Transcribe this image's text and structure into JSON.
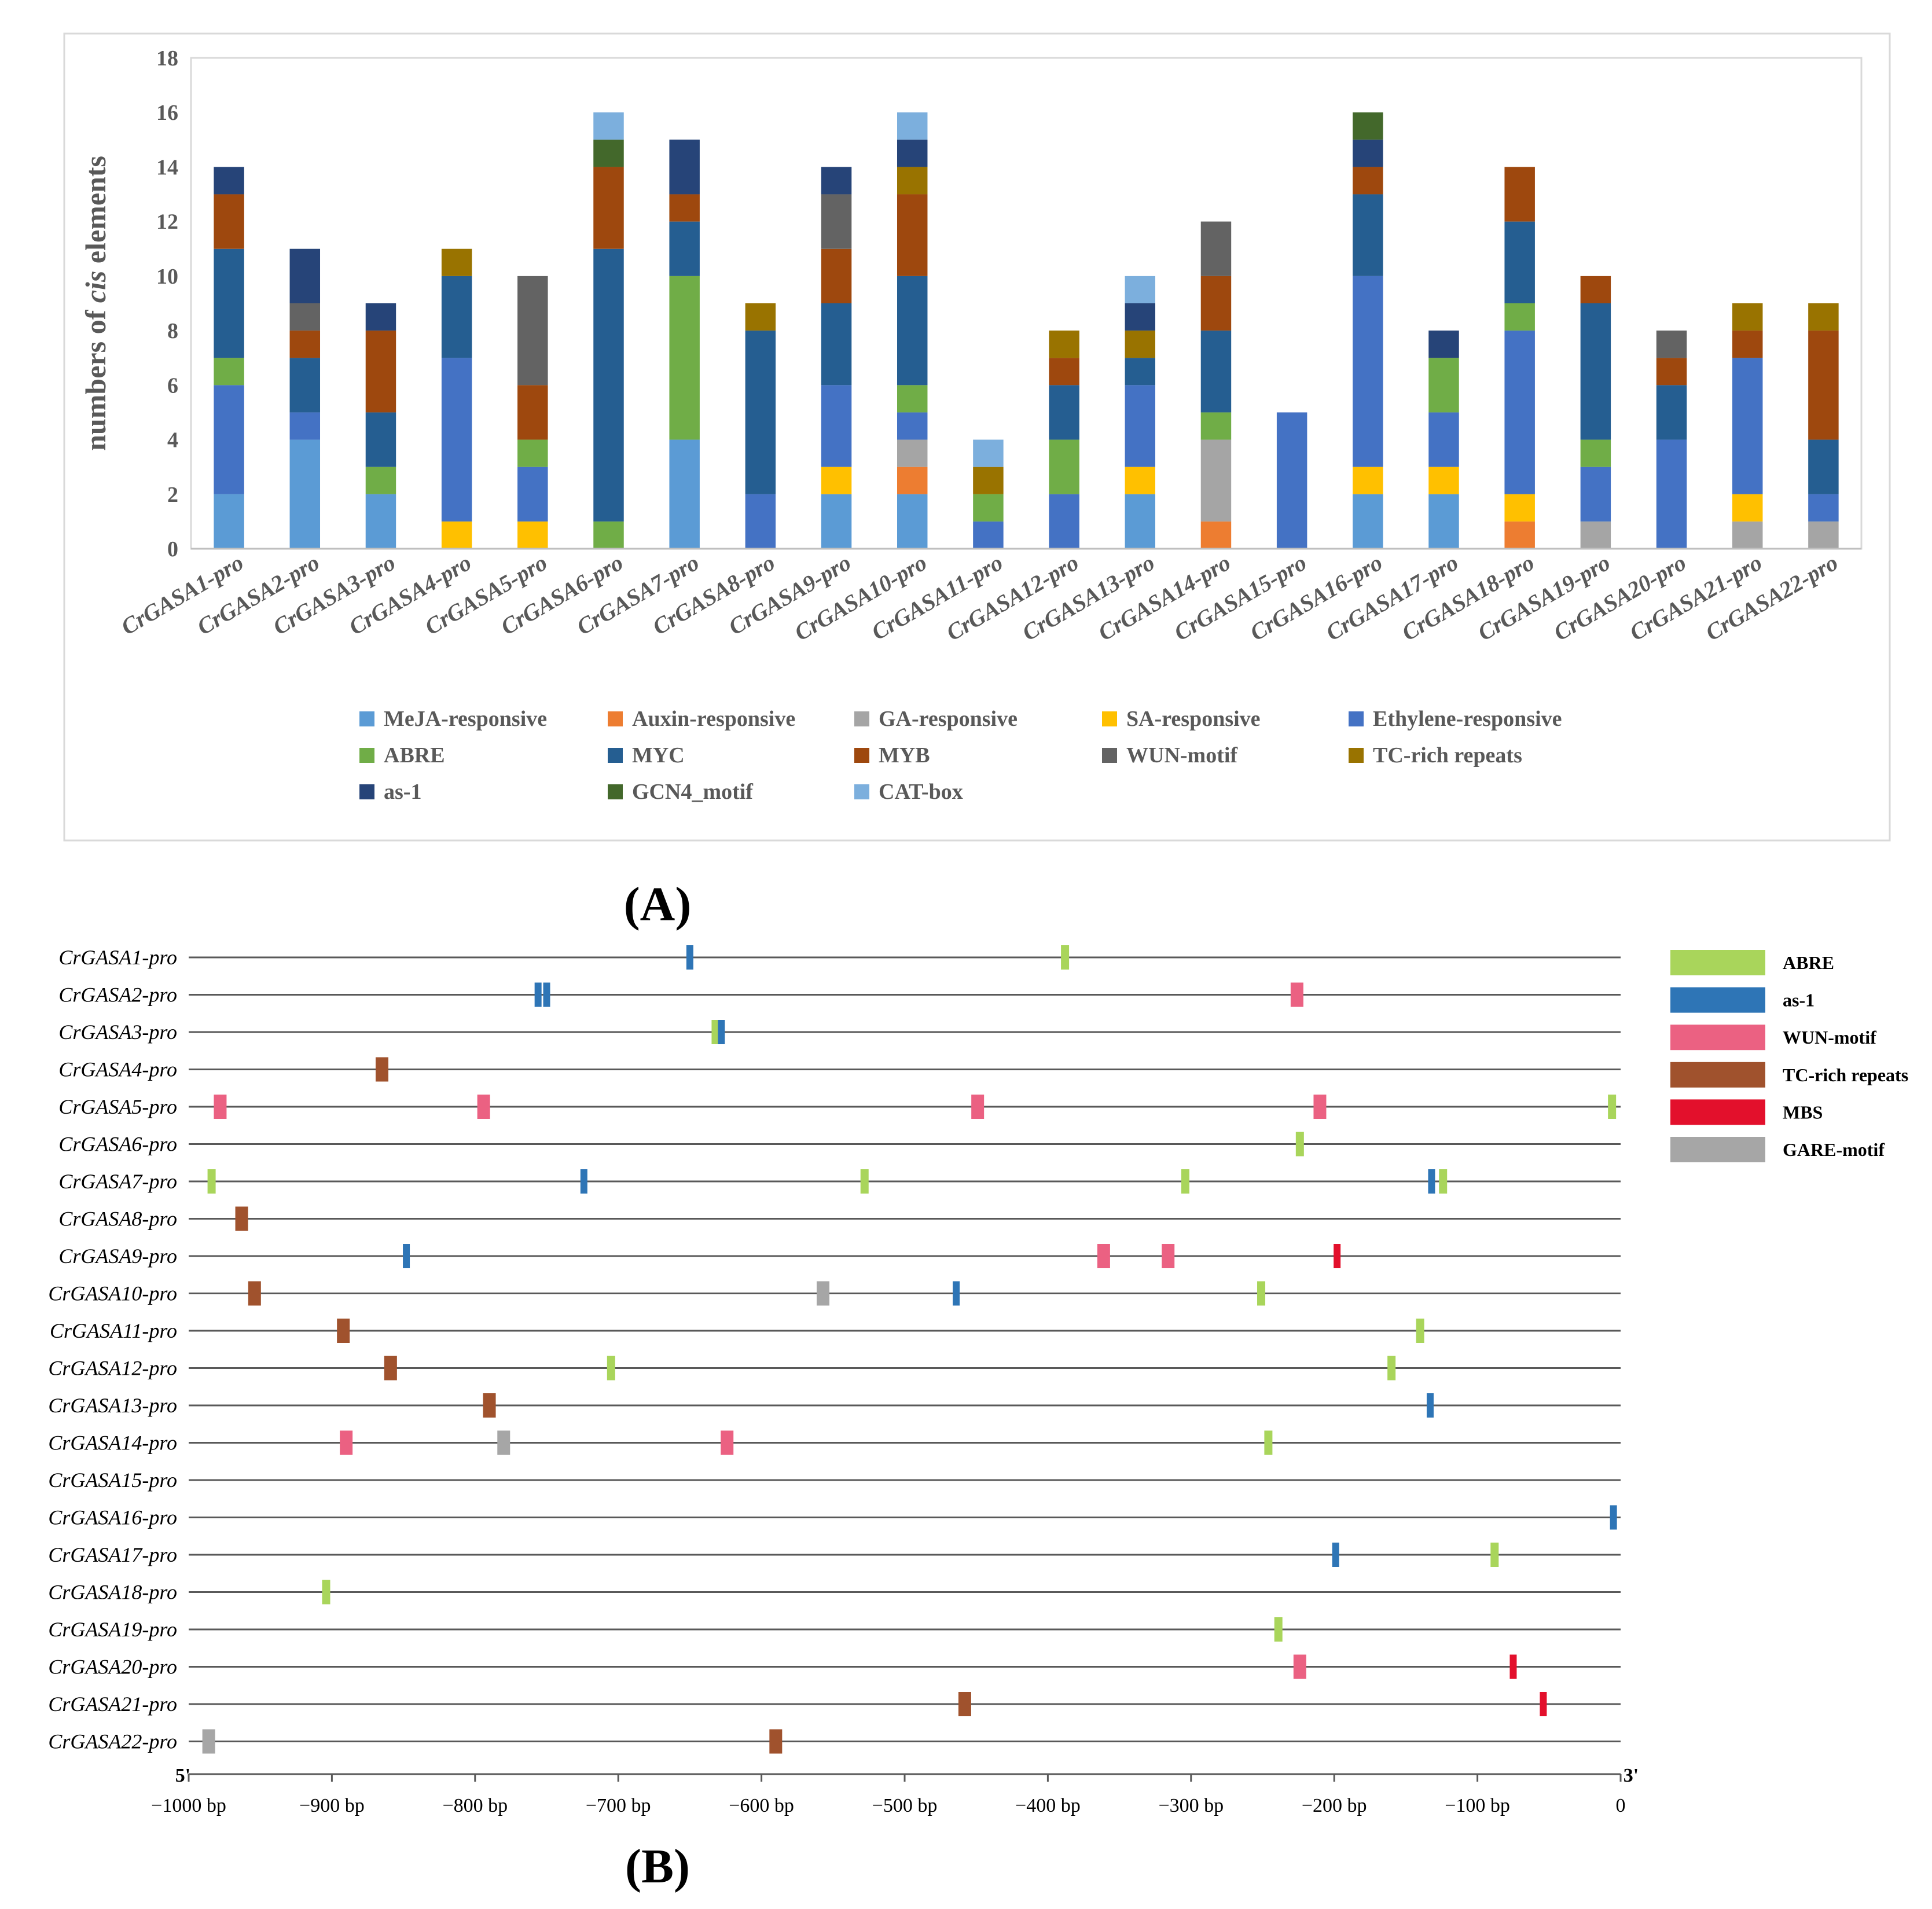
{
  "panel_labels": {
    "a": "(A)",
    "b": "(B)"
  },
  "chart_data": [
    {
      "type": "bar",
      "stacked": true,
      "ylabel_prefix": "numbers of ",
      "ylabel_italic": "cis",
      "ylabel_suffix": " elements",
      "ylim": [
        0,
        18
      ],
      "yticks": [
        0,
        2,
        4,
        6,
        8,
        10,
        12,
        14,
        16,
        18
      ],
      "grid": false,
      "legend_position": "bottom",
      "categories": [
        "CrGASA1-pro",
        "CrGASA2-pro",
        "CrGASA3-pro",
        "CrGASA4-pro",
        "CrGASA5-pro",
        "CrGASA6-pro",
        "CrGASA7-pro",
        "CrGASA8-pro",
        "CrGASA9-pro",
        "CrGASA10-pro",
        "CrGASA11-pro",
        "CrGASA12-pro",
        "CrGASA13-pro",
        "CrGASA14-pro",
        "CrGASA15-pro",
        "CrGASA16-pro",
        "CrGASA17-pro",
        "CrGASA18-pro",
        "CrGASA19-pro",
        "CrGASA20-pro",
        "CrGASA21-pro",
        "CrGASA22-pro"
      ],
      "series": [
        {
          "name": "MeJA-responsive",
          "color": "#5b9bd5",
          "values": [
            2,
            4,
            2,
            0,
            0,
            0,
            4,
            0,
            2,
            2,
            0,
            0,
            2,
            0,
            0,
            2,
            2,
            0,
            0,
            0,
            0,
            0
          ]
        },
        {
          "name": "Auxin-responsive",
          "color": "#ed7d31",
          "values": [
            0,
            0,
            0,
            0,
            0,
            0,
            0,
            0,
            0,
            1,
            0,
            0,
            0,
            1,
            0,
            0,
            0,
            1,
            0,
            0,
            0,
            0
          ]
        },
        {
          "name": "GA-responsive",
          "color": "#a5a5a5",
          "values": [
            0,
            0,
            0,
            0,
            0,
            0,
            0,
            0,
            0,
            1,
            0,
            0,
            0,
            3,
            0,
            0,
            0,
            0,
            1,
            0,
            1,
            1
          ]
        },
        {
          "name": "SA-responsive",
          "color": "#ffc000",
          "values": [
            0,
            0,
            0,
            1,
            1,
            0,
            0,
            0,
            1,
            0,
            0,
            0,
            1,
            0,
            0,
            1,
            1,
            1,
            0,
            0,
            1,
            0
          ]
        },
        {
          "name": "Ethylene-responsive",
          "color": "#4472c4",
          "values": [
            4,
            1,
            0,
            6,
            2,
            0,
            0,
            2,
            3,
            1,
            1,
            2,
            3,
            0,
            5,
            7,
            2,
            6,
            2,
            4,
            5,
            1
          ]
        },
        {
          "name": "ABRE",
          "color": "#70ad47",
          "values": [
            1,
            0,
            1,
            0,
            1,
            1,
            6,
            0,
            0,
            1,
            1,
            2,
            0,
            1,
            0,
            0,
            2,
            1,
            1,
            0,
            0,
            0
          ]
        },
        {
          "name": "MYC",
          "color": "#255e91",
          "values": [
            4,
            2,
            2,
            3,
            0,
            10,
            2,
            6,
            3,
            4,
            0,
            2,
            1,
            3,
            0,
            3,
            0,
            3,
            5,
            2,
            0,
            2
          ]
        },
        {
          "name": "MYB",
          "color": "#9e480e",
          "values": [
            2,
            1,
            3,
            0,
            2,
            3,
            1,
            0,
            2,
            3,
            0,
            1,
            0,
            2,
            0,
            1,
            0,
            2,
            1,
            1,
            1,
            4
          ]
        },
        {
          "name": "WUN-motif",
          "color": "#636363",
          "values": [
            0,
            1,
            0,
            0,
            4,
            0,
            0,
            0,
            2,
            0,
            0,
            0,
            0,
            2,
            0,
            0,
            0,
            0,
            0,
            1,
            0,
            0
          ]
        },
        {
          "name": "TC-rich repeats",
          "color": "#997300",
          "values": [
            0,
            0,
            0,
            1,
            0,
            0,
            0,
            1,
            0,
            1,
            1,
            1,
            1,
            0,
            0,
            0,
            0,
            0,
            0,
            0,
            1,
            1
          ]
        },
        {
          "name": "as-1",
          "color": "#264478",
          "values": [
            1,
            2,
            1,
            0,
            0,
            0,
            2,
            0,
            1,
            1,
            0,
            0,
            1,
            0,
            0,
            1,
            1,
            0,
            0,
            0,
            0,
            0
          ]
        },
        {
          "name": "GCN4_motif",
          "color": "#43682b",
          "values": [
            0,
            0,
            0,
            0,
            0,
            1,
            0,
            0,
            0,
            0,
            0,
            0,
            0,
            0,
            0,
            1,
            0,
            0,
            0,
            0,
            0,
            0
          ]
        },
        {
          "name": "CAT-box",
          "color": "#7cafdd",
          "values": [
            0,
            0,
            0,
            0,
            0,
            1,
            0,
            0,
            0,
            1,
            1,
            0,
            1,
            0,
            0,
            0,
            0,
            0,
            0,
            0,
            0,
            0
          ]
        }
      ]
    },
    {
      "type": "scatter",
      "subtype": "promoter-element-map",
      "xlabel": "",
      "xlim": [
        -1000,
        0
      ],
      "xtick_values": [
        -1000,
        -900,
        -800,
        -700,
        -600,
        -500,
        -400,
        -300,
        -200,
        -100,
        0
      ],
      "xtick_labels": [
        "−1000 bp",
        "−900 bp",
        "−800 bp",
        "−700 bp",
        "−600 bp",
        "−500 bp",
        "−400 bp",
        "−300 bp",
        "−200 bp",
        "−100 bp",
        "0"
      ],
      "end_labels": {
        "left": "5'",
        "right": "3'"
      },
      "promoters": [
        "CrGASA1-pro",
        "CrGASA2-pro",
        "CrGASA3-pro",
        "CrGASA4-pro",
        "CrGASA5-pro",
        "CrGASA6-pro",
        "CrGASA7-pro",
        "CrGASA8-pro",
        "CrGASA9-pro",
        "CrGASA10-pro",
        "CrGASA11-pro",
        "CrGASA12-pro",
        "CrGASA13-pro",
        "CrGASA14-pro",
        "CrGASA15-pro",
        "CrGASA16-pro",
        "CrGASA17-pro",
        "CrGASA18-pro",
        "CrGASA19-pro",
        "CrGASA20-pro",
        "CrGASA21-pro",
        "CrGASA22-pro"
      ],
      "legend": [
        {
          "name": "ABRE",
          "color": "#a9d55b"
        },
        {
          "name": "as-1",
          "color": "#2e75b6"
        },
        {
          "name": "WUN-motif",
          "color": "#eb6182"
        },
        {
          "name": "TC-rich repeats",
          "color": "#a0522d"
        },
        {
          "name": "MBS",
          "color": "#e3102c"
        },
        {
          "name": "GARE-motif",
          "color": "#a6a6a6"
        }
      ],
      "elements": [
        {
          "promoter": 0,
          "type": "as-1",
          "pos": -650
        },
        {
          "promoter": 0,
          "type": "ABRE",
          "pos": -388
        },
        {
          "promoter": 1,
          "type": "as-1",
          "pos": -756
        },
        {
          "promoter": 1,
          "type": "as-1",
          "pos": -750
        },
        {
          "promoter": 1,
          "type": "WUN-motif",
          "pos": -226
        },
        {
          "promoter": 2,
          "type": "ABRE",
          "pos": -632
        },
        {
          "promoter": 2,
          "type": "as-1",
          "pos": -628
        },
        {
          "promoter": 3,
          "type": "TC-rich repeats",
          "pos": -865
        },
        {
          "promoter": 4,
          "type": "WUN-motif",
          "pos": -978
        },
        {
          "promoter": 4,
          "type": "WUN-motif",
          "pos": -794
        },
        {
          "promoter": 4,
          "type": "WUN-motif",
          "pos": -449
        },
        {
          "promoter": 4,
          "type": "WUN-motif",
          "pos": -210
        },
        {
          "promoter": 4,
          "type": "ABRE",
          "pos": -6
        },
        {
          "promoter": 5,
          "type": "ABRE",
          "pos": -224
        },
        {
          "promoter": 6,
          "type": "ABRE",
          "pos": -984
        },
        {
          "promoter": 6,
          "type": "as-1",
          "pos": -724
        },
        {
          "promoter": 6,
          "type": "ABRE",
          "pos": -528
        },
        {
          "promoter": 6,
          "type": "ABRE",
          "pos": -304
        },
        {
          "promoter": 6,
          "type": "as-1",
          "pos": -132
        },
        {
          "promoter": 6,
          "type": "ABRE",
          "pos": -124
        },
        {
          "promoter": 7,
          "type": "TC-rich repeats",
          "pos": -963
        },
        {
          "promoter": 8,
          "type": "as-1",
          "pos": -848
        },
        {
          "promoter": 8,
          "type": "WUN-motif",
          "pos": -361
        },
        {
          "promoter": 8,
          "type": "WUN-motif",
          "pos": -316
        },
        {
          "promoter": 8,
          "type": "MBS",
          "pos": -198
        },
        {
          "promoter": 9,
          "type": "TC-rich repeats",
          "pos": -954
        },
        {
          "promoter": 9,
          "type": "GARE-motif",
          "pos": -557
        },
        {
          "promoter": 9,
          "type": "as-1",
          "pos": -464
        },
        {
          "promoter": 9,
          "type": "ABRE",
          "pos": -251
        },
        {
          "promoter": 10,
          "type": "TC-rich repeats",
          "pos": -892
        },
        {
          "promoter": 10,
          "type": "ABRE",
          "pos": -140
        },
        {
          "promoter": 11,
          "type": "TC-rich repeats",
          "pos": -859
        },
        {
          "promoter": 11,
          "type": "ABRE",
          "pos": -705
        },
        {
          "promoter": 11,
          "type": "ABRE",
          "pos": -160
        },
        {
          "promoter": 12,
          "type": "TC-rich repeats",
          "pos": -790
        },
        {
          "promoter": 12,
          "type": "as-1",
          "pos": -133
        },
        {
          "promoter": 13,
          "type": "WUN-motif",
          "pos": -890
        },
        {
          "promoter": 13,
          "type": "GARE-motif",
          "pos": -780
        },
        {
          "promoter": 13,
          "type": "WUN-motif",
          "pos": -624
        },
        {
          "promoter": 13,
          "type": "ABRE",
          "pos": -246
        },
        {
          "promoter": 15,
          "type": "as-1",
          "pos": -5
        },
        {
          "promoter": 16,
          "type": "as-1",
          "pos": -199
        },
        {
          "promoter": 16,
          "type": "ABRE",
          "pos": -88
        },
        {
          "promoter": 17,
          "type": "ABRE",
          "pos": -904
        },
        {
          "promoter": 18,
          "type": "ABRE",
          "pos": -239
        },
        {
          "promoter": 19,
          "type": "WUN-motif",
          "pos": -224
        },
        {
          "promoter": 19,
          "type": "MBS",
          "pos": -75
        },
        {
          "promoter": 20,
          "type": "TC-rich repeats",
          "pos": -458
        },
        {
          "promoter": 20,
          "type": "MBS",
          "pos": -54
        },
        {
          "promoter": 21,
          "type": "GARE-motif",
          "pos": -986
        },
        {
          "promoter": 21,
          "type": "TC-rich repeats",
          "pos": -590
        }
      ]
    }
  ]
}
